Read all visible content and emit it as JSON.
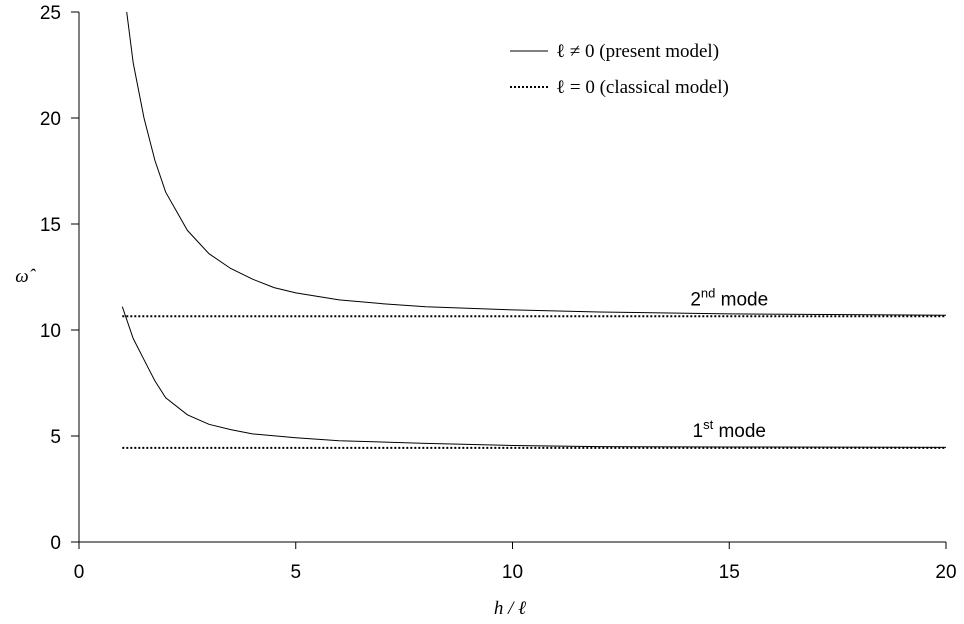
{
  "chart_data": {
    "type": "line",
    "xlabel": "h / ℓ",
    "ylabel": "ω̂",
    "xlim": [
      0,
      20
    ],
    "ylim": [
      0,
      25
    ],
    "xticks": [
      "0",
      "5",
      "10",
      "15",
      "20"
    ],
    "yticks": [
      "0",
      "5",
      "10",
      "15",
      "20",
      "25"
    ],
    "grid": false,
    "legend_position": "top-right",
    "legend": [
      {
        "label": "ℓ ≠ 0 (present model)",
        "style": "solid"
      },
      {
        "label": "ℓ = 0 (classical model)",
        "style": "dotted"
      }
    ],
    "series": [
      {
        "mode": "2nd",
        "model": "present",
        "style": "solid",
        "x": [
          1.1,
          1.25,
          1.5,
          1.75,
          2.0,
          2.5,
          3.0,
          3.5,
          4.0,
          4.5,
          5.0,
          6.0,
          7.0,
          8.0,
          10.0,
          12.0,
          15.0,
          20.0
        ],
        "y": [
          25.0,
          22.6,
          20.0,
          18.0,
          16.5,
          14.7,
          13.6,
          12.9,
          12.4,
          12.0,
          11.75,
          11.42,
          11.24,
          11.1,
          10.95,
          10.85,
          10.76,
          10.7
        ]
      },
      {
        "mode": "2nd",
        "model": "classical",
        "style": "dotted",
        "x": [
          1.0,
          20.0
        ],
        "y": [
          10.65,
          10.65
        ]
      },
      {
        "mode": "1st",
        "model": "present",
        "style": "solid",
        "x": [
          1.0,
          1.25,
          1.5,
          1.75,
          2.0,
          2.5,
          3.0,
          3.5,
          4.0,
          5.0,
          6.0,
          8.0,
          10.0,
          12.0,
          15.0,
          20.0
        ],
        "y": [
          11.1,
          9.6,
          8.6,
          7.6,
          6.8,
          6.0,
          5.55,
          5.3,
          5.1,
          4.92,
          4.78,
          4.65,
          4.55,
          4.5,
          4.48,
          4.46
        ]
      },
      {
        "mode": "1st",
        "model": "classical",
        "style": "dotted",
        "x": [
          1.0,
          20.0
        ],
        "y": [
          4.44,
          4.44
        ]
      }
    ],
    "annotations": [
      {
        "text": "2nd mode",
        "base": "2",
        "sup": "nd",
        "rest": " mode",
        "x": 15.0,
        "y": 11.15
      },
      {
        "text": "1st mode",
        "base": "1",
        "sup": "st",
        "rest": " mode",
        "x": 15.0,
        "y": 4.95
      }
    ]
  }
}
